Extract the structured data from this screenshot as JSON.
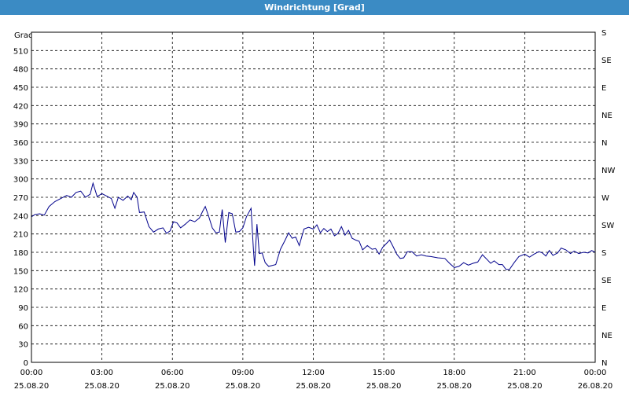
{
  "window": {
    "title": "Windrichtung [Grad]"
  },
  "chart_data": {
    "type": "line",
    "title": "Windrichtung [Grad]",
    "ylabel": "Grad",
    "ylim": [
      0,
      540
    ],
    "xlim_hours": [
      0,
      24
    ],
    "grid": true,
    "line_color": "#00008b",
    "y_ticks": [
      0,
      30,
      60,
      90,
      120,
      150,
      180,
      210,
      240,
      270,
      300,
      330,
      360,
      390,
      420,
      450,
      480,
      510
    ],
    "right_axis_labels": [
      "N",
      "NE",
      "E",
      "SE",
      "S",
      "SW",
      "W",
      "NW",
      "N",
      "NE",
      "E",
      "SE",
      "S"
    ],
    "x_ticks": [
      {
        "hour": 0,
        "time": "00:00",
        "date": "25.08.20"
      },
      {
        "hour": 3,
        "time": "03:00",
        "date": "25.08.20"
      },
      {
        "hour": 6,
        "time": "06:00",
        "date": "25.08.20"
      },
      {
        "hour": 9,
        "time": "09:00",
        "date": "25.08.20"
      },
      {
        "hour": 12,
        "time": "12:00",
        "date": "25.08.20"
      },
      {
        "hour": 15,
        "time": "15:00",
        "date": "25.08.20"
      },
      {
        "hour": 18,
        "time": "18:00",
        "date": "25.08.20"
      },
      {
        "hour": 21,
        "time": "21:00",
        "date": "25.08.20"
      },
      {
        "hour": 24,
        "time": "00:00",
        "date": "26.08.20"
      }
    ],
    "series": [
      {
        "points": [
          [
            0.0,
            238
          ],
          [
            0.15,
            242
          ],
          [
            0.35,
            243
          ],
          [
            0.55,
            241
          ],
          [
            0.75,
            255
          ],
          [
            1.0,
            263
          ],
          [
            1.25,
            268
          ],
          [
            1.5,
            273
          ],
          [
            1.7,
            270
          ],
          [
            1.9,
            278
          ],
          [
            2.1,
            280
          ],
          [
            2.3,
            270
          ],
          [
            2.5,
            275
          ],
          [
            2.62,
            293
          ],
          [
            2.8,
            271
          ],
          [
            3.0,
            276
          ],
          [
            3.2,
            272
          ],
          [
            3.4,
            268
          ],
          [
            3.55,
            252
          ],
          [
            3.7,
            270
          ],
          [
            3.9,
            265
          ],
          [
            4.1,
            272
          ],
          [
            4.25,
            266
          ],
          [
            4.35,
            278
          ],
          [
            4.5,
            270
          ],
          [
            4.6,
            245
          ],
          [
            4.8,
            246
          ],
          [
            5.0,
            222
          ],
          [
            5.2,
            213
          ],
          [
            5.4,
            218
          ],
          [
            5.6,
            220
          ],
          [
            5.75,
            211
          ],
          [
            5.9,
            215
          ],
          [
            6.05,
            230
          ],
          [
            6.2,
            228
          ],
          [
            6.35,
            220
          ],
          [
            6.55,
            226
          ],
          [
            6.75,
            233
          ],
          [
            6.95,
            230
          ],
          [
            7.15,
            236
          ],
          [
            7.3,
            248
          ],
          [
            7.4,
            255
          ],
          [
            7.55,
            238
          ],
          [
            7.7,
            220
          ],
          [
            7.85,
            212
          ],
          [
            8.0,
            213
          ],
          [
            8.12,
            250
          ],
          [
            8.25,
            196
          ],
          [
            8.4,
            245
          ],
          [
            8.55,
            243
          ],
          [
            8.7,
            213
          ],
          [
            8.85,
            214
          ],
          [
            9.0,
            220
          ],
          [
            9.15,
            238
          ],
          [
            9.35,
            252
          ],
          [
            9.45,
            185
          ],
          [
            9.5,
            158
          ],
          [
            9.6,
            226
          ],
          [
            9.7,
            178
          ],
          [
            9.82,
            179
          ],
          [
            9.95,
            163
          ],
          [
            10.1,
            157
          ],
          [
            10.4,
            160
          ],
          [
            10.6,
            185
          ],
          [
            10.8,
            200
          ],
          [
            10.95,
            212
          ],
          [
            11.1,
            203
          ],
          [
            11.25,
            205
          ],
          [
            11.4,
            191
          ],
          [
            11.6,
            218
          ],
          [
            11.8,
            221
          ],
          [
            12.0,
            218
          ],
          [
            12.15,
            225
          ],
          [
            12.3,
            212
          ],
          [
            12.45,
            219
          ],
          [
            12.6,
            214
          ],
          [
            12.75,
            218
          ],
          [
            12.9,
            207
          ],
          [
            13.05,
            211
          ],
          [
            13.2,
            222
          ],
          [
            13.35,
            208
          ],
          [
            13.5,
            216
          ],
          [
            13.65,
            203
          ],
          [
            13.8,
            200
          ],
          [
            13.95,
            198
          ],
          [
            14.1,
            184
          ],
          [
            14.3,
            191
          ],
          [
            14.5,
            185
          ],
          [
            14.65,
            186
          ],
          [
            14.8,
            177
          ],
          [
            14.95,
            188
          ],
          [
            15.1,
            194
          ],
          [
            15.25,
            200
          ],
          [
            15.4,
            189
          ],
          [
            15.55,
            177
          ],
          [
            15.7,
            170
          ],
          [
            15.85,
            171
          ],
          [
            16.0,
            181
          ],
          [
            16.2,
            181
          ],
          [
            16.4,
            174
          ],
          [
            16.6,
            176
          ],
          [
            16.8,
            174
          ],
          [
            17.0,
            173
          ],
          [
            17.3,
            171
          ],
          [
            17.6,
            170
          ],
          [
            17.8,
            162
          ],
          [
            18.0,
            155
          ],
          [
            18.2,
            157
          ],
          [
            18.4,
            163
          ],
          [
            18.6,
            159
          ],
          [
            18.8,
            162
          ],
          [
            19.0,
            164
          ],
          [
            19.2,
            176
          ],
          [
            19.4,
            168
          ],
          [
            19.55,
            162
          ],
          [
            19.7,
            166
          ],
          [
            19.9,
            160
          ],
          [
            20.05,
            160
          ],
          [
            20.2,
            152
          ],
          [
            20.35,
            152
          ],
          [
            20.55,
            163
          ],
          [
            20.75,
            173
          ],
          [
            21.0,
            177
          ],
          [
            21.2,
            172
          ],
          [
            21.4,
            177
          ],
          [
            21.6,
            181
          ],
          [
            21.75,
            179
          ],
          [
            21.9,
            174
          ],
          [
            22.05,
            183
          ],
          [
            22.2,
            175
          ],
          [
            22.4,
            179
          ],
          [
            22.55,
            187
          ],
          [
            22.75,
            184
          ],
          [
            22.95,
            178
          ],
          [
            23.1,
            182
          ],
          [
            23.3,
            178
          ],
          [
            23.5,
            180
          ],
          [
            23.7,
            179
          ],
          [
            23.85,
            183
          ],
          [
            24.0,
            180
          ]
        ]
      }
    ]
  }
}
